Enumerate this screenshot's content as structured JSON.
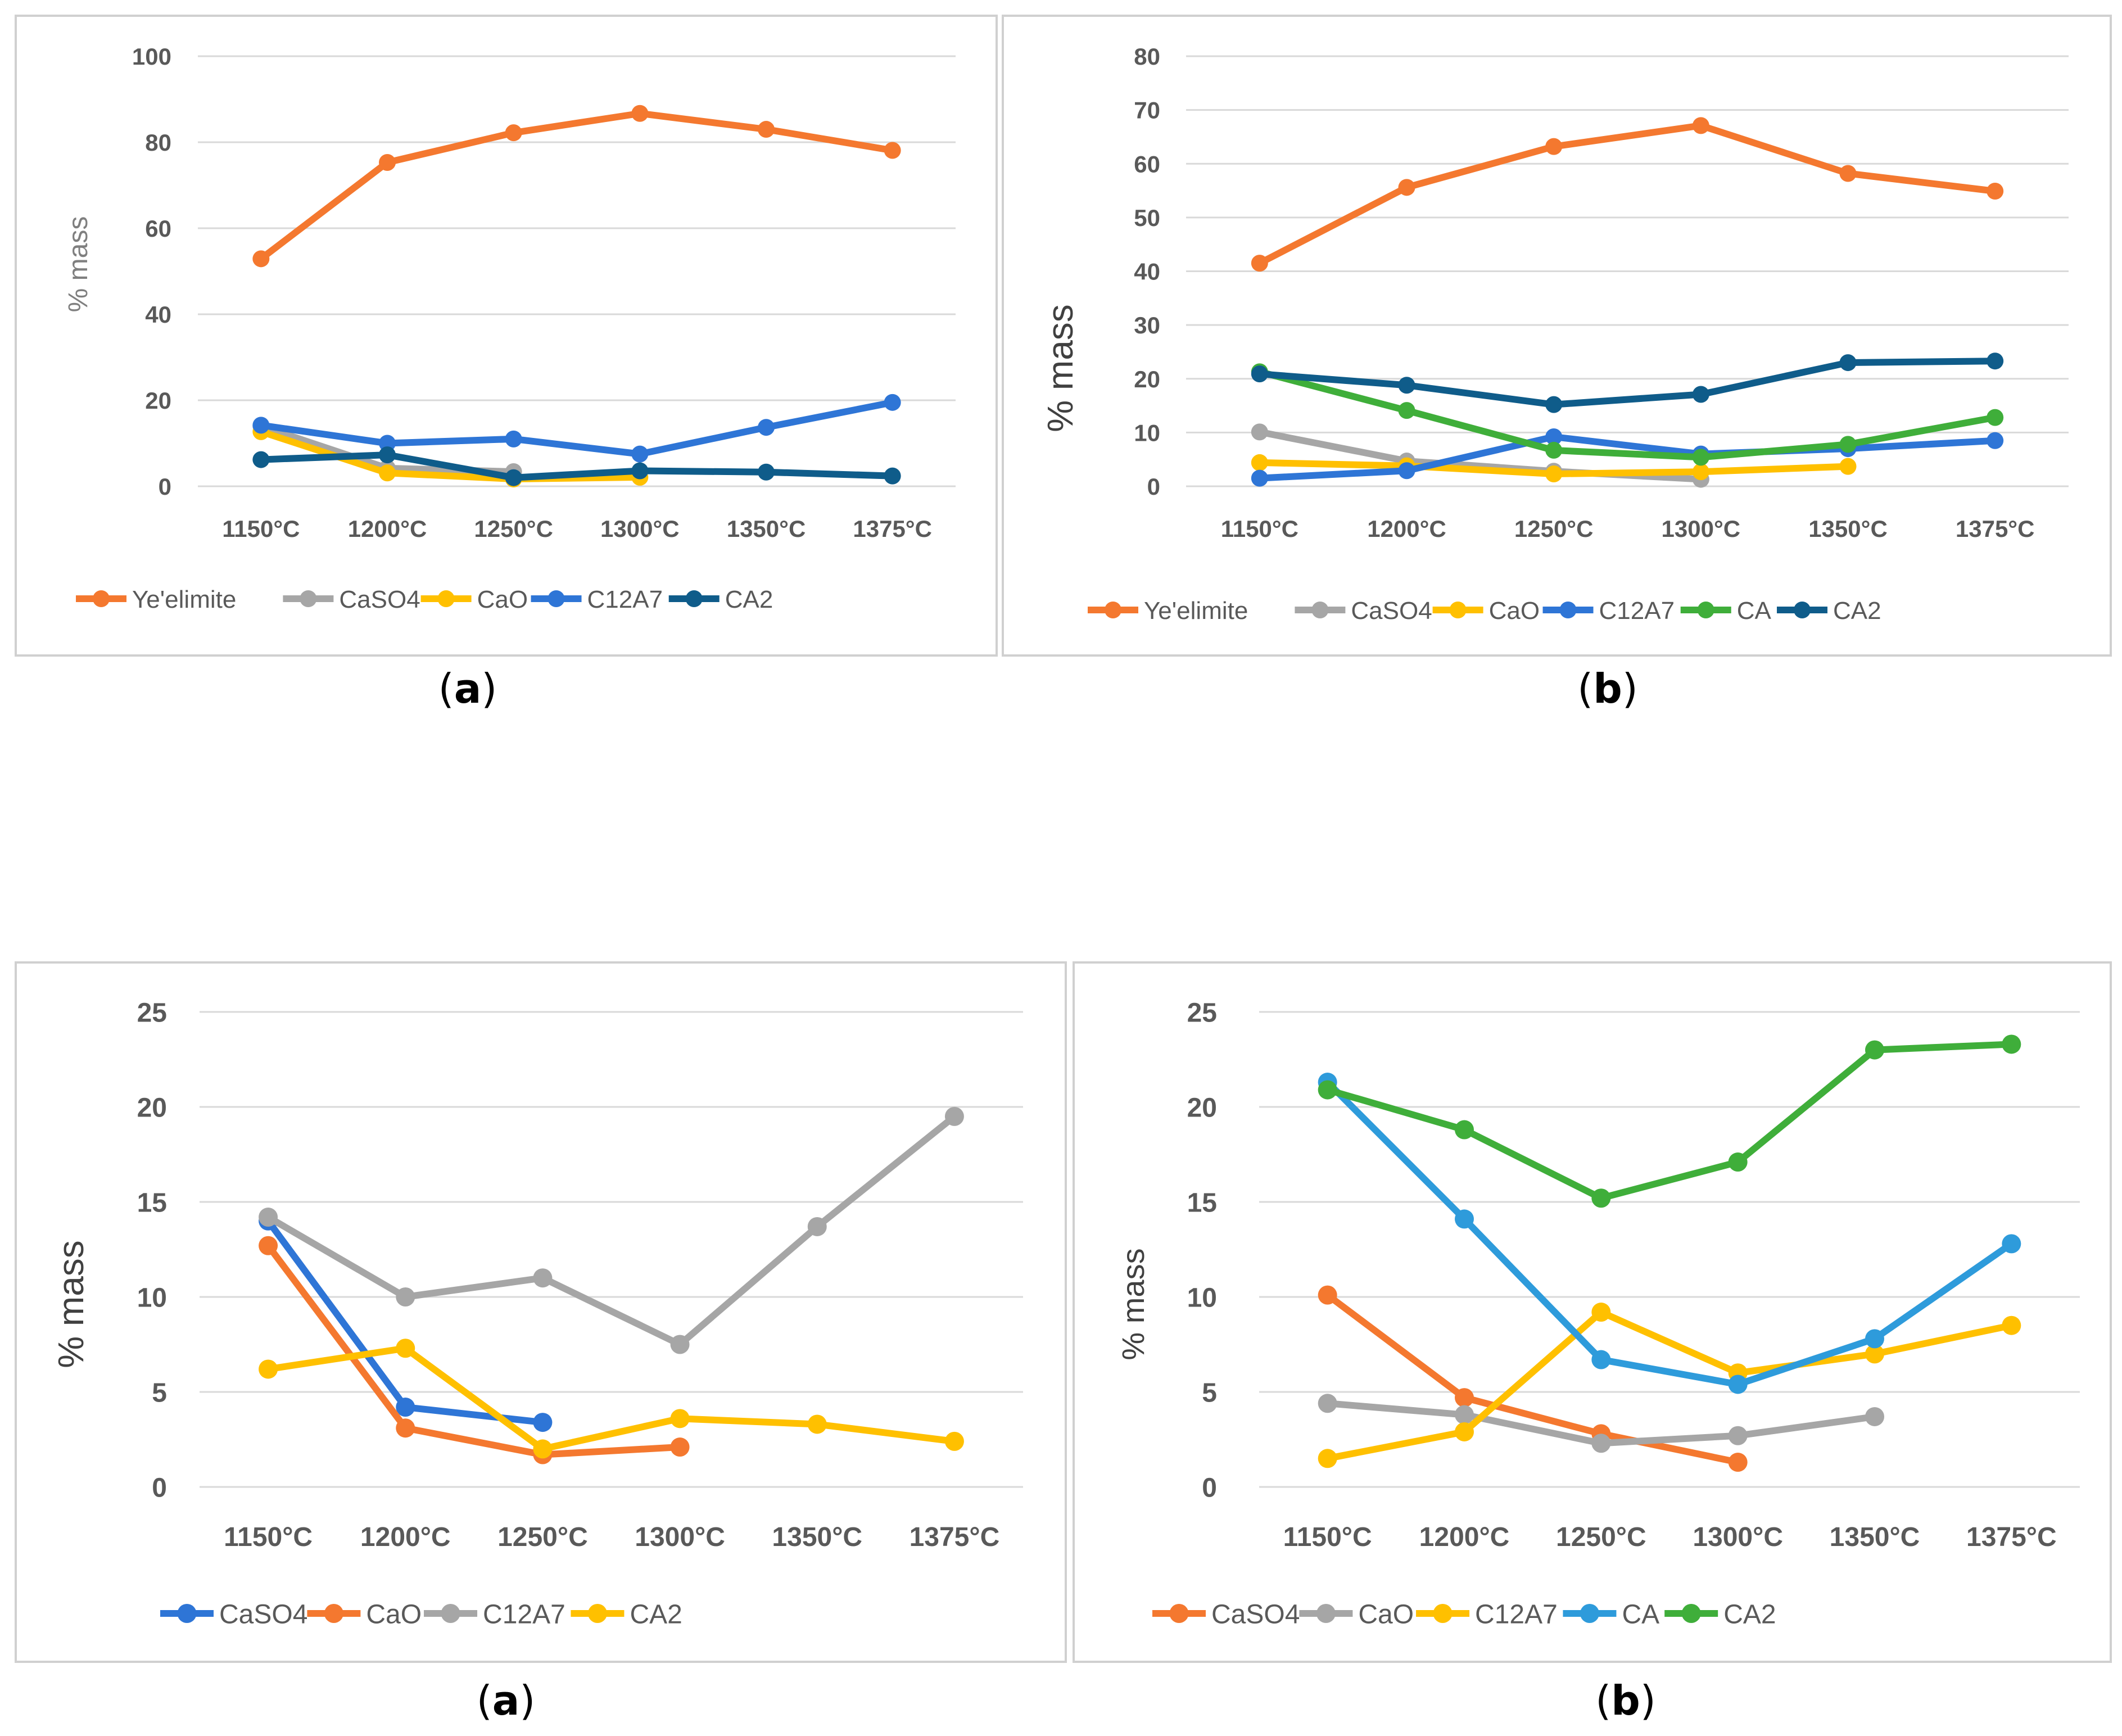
{
  "figure": {
    "charts": [
      {
        "panel_label_open": "(",
        "panel_label_letter": "a",
        "panel_label_close": ")"
      },
      {
        "panel_label_open": "(",
        "panel_label_letter": "b",
        "panel_label_close": ")"
      },
      {
        "panel_label_open": "(",
        "panel_label_letter": "a",
        "panel_label_close": ")"
      },
      {
        "panel_label_open": "(",
        "panel_label_letter": "b",
        "panel_label_close": ")"
      }
    ]
  },
  "colors": {
    "orange": "#F4782F",
    "gray": "#A6A6A6",
    "yellow": "#FFC000",
    "blue": "#2E75D6",
    "navy": "#0F5C8A",
    "green": "#3FAE3A",
    "lightblue": "#2E9BDB",
    "grid": "#D9D9D9",
    "tick_text": "#595959",
    "frame": "#D0D0D0"
  },
  "chart_data": [
    {
      "type": "line",
      "title": "",
      "xlabel": "",
      "ylabel": "% mass",
      "ylim": [
        0,
        100
      ],
      "yticks": [
        0,
        20,
        40,
        60,
        80,
        100
      ],
      "categories": [
        "1150°C",
        "1200°C",
        "1250°C",
        "1300°C",
        "1350°C",
        "1375°C"
      ],
      "legend_position": "bottom",
      "series": [
        {
          "name": "Ye'elimite",
          "color": "orange",
          "values": [
            52.9,
            75.3,
            82.2,
            86.7,
            83.0,
            78.1
          ]
        },
        {
          "name": "CaSO4",
          "color": "gray",
          "values": [
            14.0,
            4.2,
            3.4,
            null,
            null,
            null
          ]
        },
        {
          "name": "CaO",
          "color": "yellow",
          "values": [
            12.7,
            3.1,
            1.7,
            2.1,
            null,
            null
          ]
        },
        {
          "name": "C12A7",
          "color": "blue",
          "values": [
            14.2,
            10.0,
            11.0,
            7.5,
            13.7,
            19.5
          ]
        },
        {
          "name": "CA2",
          "color": "navy",
          "values": [
            6.2,
            7.3,
            2.0,
            3.6,
            3.3,
            2.4
          ]
        }
      ]
    },
    {
      "type": "line",
      "title": "",
      "xlabel": "",
      "ylabel": "% mass",
      "ylim": [
        0,
        80
      ],
      "yticks": [
        0,
        10,
        20,
        30,
        40,
        50,
        60,
        70,
        80
      ],
      "categories": [
        "1150°C",
        "1200°C",
        "1250°C",
        "1300°C",
        "1350°C",
        "1375°C"
      ],
      "legend_position": "bottom",
      "series": [
        {
          "name": "Ye'elimite",
          "color": "orange",
          "values": [
            41.5,
            55.6,
            63.2,
            67.1,
            58.2,
            54.9
          ]
        },
        {
          "name": "CaSO4",
          "color": "gray",
          "values": [
            10.1,
            4.7,
            2.8,
            1.3,
            null,
            null
          ]
        },
        {
          "name": "CaO",
          "color": "yellow",
          "values": [
            4.4,
            3.8,
            2.3,
            2.7,
            3.7,
            null
          ]
        },
        {
          "name": "C12A7",
          "color": "blue",
          "values": [
            1.5,
            2.9,
            9.2,
            6.0,
            7.0,
            8.5
          ]
        },
        {
          "name": "CA",
          "color": "green",
          "values": [
            21.3,
            14.1,
            6.7,
            5.4,
            7.8,
            12.8
          ]
        },
        {
          "name": "CA2",
          "color": "navy",
          "values": [
            20.9,
            18.8,
            15.2,
            17.1,
            23.0,
            23.3
          ]
        }
      ]
    },
    {
      "type": "line",
      "title": "",
      "xlabel": "",
      "ylabel": "% mass",
      "ylim": [
        0,
        25
      ],
      "yticks": [
        0,
        5,
        10,
        15,
        20,
        25
      ],
      "categories": [
        "1150°C",
        "1200°C",
        "1250°C",
        "1300°C",
        "1350°C",
        "1375°C"
      ],
      "legend_position": "bottom",
      "series": [
        {
          "name": "CaSO4",
          "color": "blue",
          "values": [
            14.0,
            4.2,
            3.4,
            null,
            null,
            null
          ]
        },
        {
          "name": "CaO",
          "color": "orange",
          "values": [
            12.7,
            3.1,
            1.7,
            2.1,
            null,
            null
          ]
        },
        {
          "name": "C12A7",
          "color": "gray",
          "values": [
            14.2,
            10.0,
            11.0,
            7.5,
            13.7,
            19.5
          ]
        },
        {
          "name": "CA2",
          "color": "yellow",
          "values": [
            6.2,
            7.3,
            2.0,
            3.6,
            3.3,
            2.4
          ]
        }
      ]
    },
    {
      "type": "line",
      "title": "",
      "xlabel": "",
      "ylabel": "% mass",
      "ylim": [
        0,
        25
      ],
      "yticks": [
        0,
        5,
        10,
        15,
        20,
        25
      ],
      "categories": [
        "1150°C",
        "1200°C",
        "1250°C",
        "1300°C",
        "1350°C",
        "1375°C"
      ],
      "legend_position": "bottom",
      "series": [
        {
          "name": "CaSO4",
          "color": "orange",
          "values": [
            10.1,
            4.7,
            2.8,
            1.3,
            null,
            null
          ]
        },
        {
          "name": "CaO",
          "color": "gray",
          "values": [
            4.4,
            3.8,
            2.3,
            2.7,
            3.7,
            null
          ]
        },
        {
          "name": "C12A7",
          "color": "yellow",
          "values": [
            1.5,
            2.9,
            9.2,
            6.0,
            7.0,
            8.5
          ]
        },
        {
          "name": "CA",
          "color": "lightblue",
          "values": [
            21.3,
            14.1,
            6.7,
            5.4,
            7.8,
            12.8
          ]
        },
        {
          "name": "CA2",
          "color": "green",
          "values": [
            20.9,
            18.8,
            15.2,
            17.1,
            23.0,
            23.3
          ]
        }
      ]
    }
  ]
}
